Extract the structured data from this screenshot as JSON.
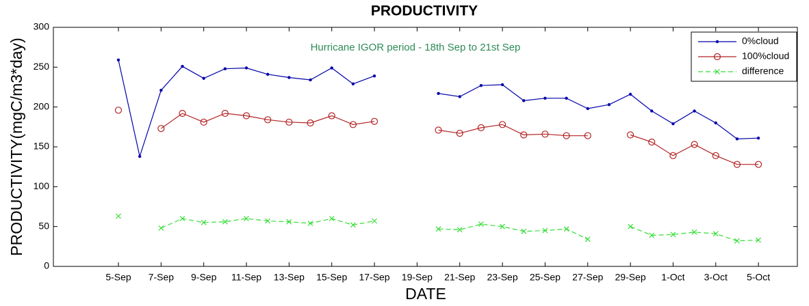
{
  "chart_data": {
    "type": "line",
    "title": "PRODUCTIVITY",
    "xlabel": "DATE",
    "ylabel": "PRODUCTIVITY(mgC/m3*day)",
    "annotation": "Hurricane IGOR period - 18th Sep to 21st Sep",
    "categories": [
      "5-Sep",
      null,
      "7-Sep",
      null,
      "9-Sep",
      null,
      "11-Sep",
      null,
      "13-Sep",
      null,
      "15-Sep",
      null,
      "17-Sep",
      null,
      "19-Sep",
      null,
      "21-Sep",
      null,
      "23-Sep",
      null,
      "25-Sep",
      null,
      "27-Sep",
      null,
      "29-Sep",
      null,
      "1-Oct",
      null,
      "3-Oct",
      null,
      "5-Oct"
    ],
    "series": [
      {
        "name": "0%cloud",
        "color": "#0000aa",
        "marker": "dot",
        "linestyle": "solid",
        "values": [
          259,
          138,
          221,
          251,
          236,
          248,
          249,
          241,
          237,
          234,
          249,
          229,
          239,
          null,
          null,
          217,
          213,
          227,
          228,
          208,
          211,
          211,
          198,
          203,
          216,
          195,
          179,
          195,
          180,
          160,
          161
        ]
      },
      {
        "name": "100%cloud",
        "color": "#b22222",
        "marker": "circle",
        "linestyle": "solid",
        "values": [
          196,
          null,
          173,
          192,
          181,
          192,
          189,
          184,
          181,
          180,
          189,
          178,
          182,
          null,
          null,
          171,
          167,
          174,
          178,
          165,
          166,
          164,
          164,
          null,
          165,
          156,
          139,
          153,
          139,
          128,
          128
        ]
      },
      {
        "name": "difference",
        "color": "#33dd33",
        "marker": "x",
        "linestyle": "dashed",
        "values": [
          63,
          null,
          48,
          60,
          55,
          56,
          60,
          57,
          56,
          54,
          60,
          52,
          57,
          null,
          null,
          47,
          46,
          53,
          50,
          44,
          45,
          47,
          34,
          null,
          50,
          39,
          40,
          43,
          41,
          32,
          33
        ]
      }
    ],
    "ylim": [
      0,
      300
    ],
    "yticks": [
      0,
      50,
      100,
      150,
      200,
      250,
      300
    ],
    "grid": false,
    "legend": "top-right",
    "annotation_color": "#2e8b57"
  }
}
